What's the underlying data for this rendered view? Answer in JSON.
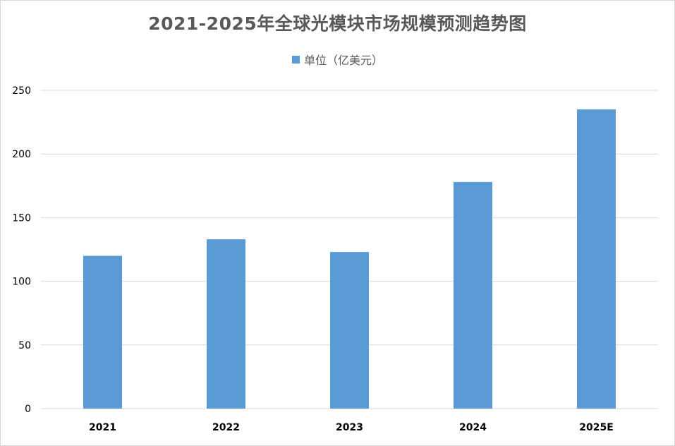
{
  "chart_data": {
    "type": "bar",
    "title": "2021-2025年全球光模块市场规模预测趋势图",
    "legend_position": "top",
    "grid": true,
    "categories": [
      "2021",
      "2022",
      "2023",
      "2024",
      "2025E"
    ],
    "series": [
      {
        "name": "单位（亿美元）",
        "color": "#5b9bd5",
        "values": [
          120,
          133,
          123,
          178,
          235
        ]
      }
    ],
    "ylim": [
      0,
      250
    ],
    "yticks": [
      "0",
      "50",
      "100",
      "150",
      "200",
      "250"
    ],
    "xlabel": "",
    "ylabel": ""
  }
}
